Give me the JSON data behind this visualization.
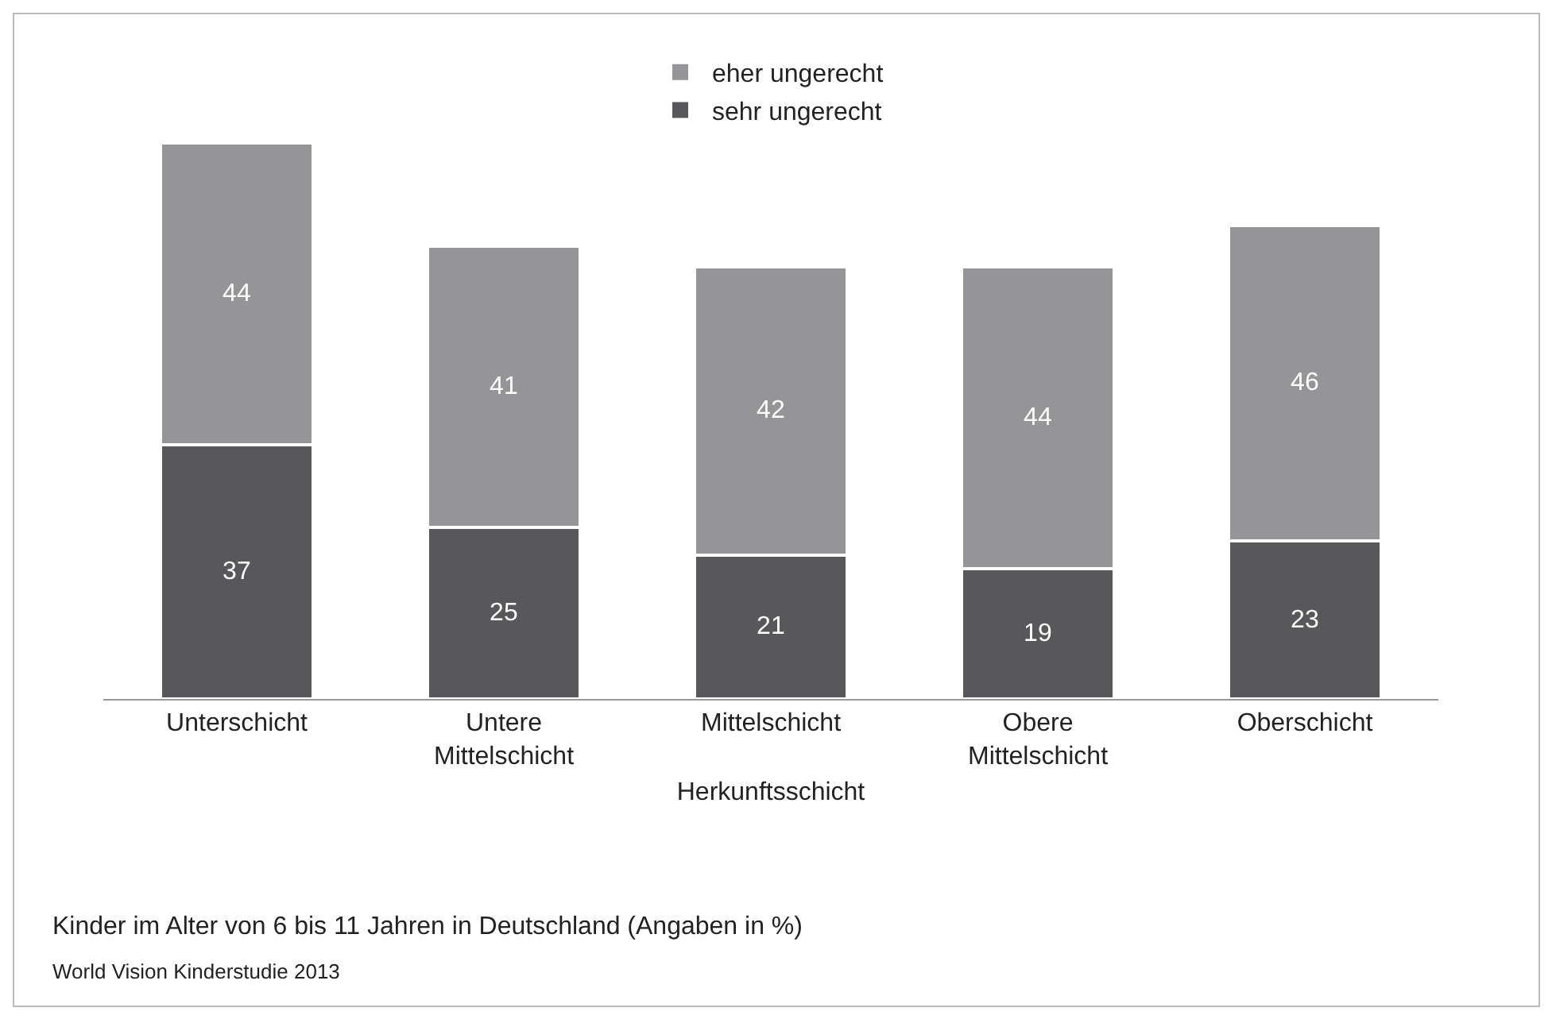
{
  "chart_data": {
    "type": "bar",
    "stacked": true,
    "xlabel": "Herkunftsschicht",
    "categories": [
      "Unterschicht",
      "Untere Mittelschicht",
      "Mittelschicht",
      "Obere Mittelschicht",
      "Oberschicht"
    ],
    "series": [
      {
        "name": "sehr ungerecht",
        "color": "#58585a",
        "values": [
          37,
          25,
          21,
          19,
          23
        ]
      },
      {
        "name": "eher ungerecht",
        "color": "#959597",
        "values": [
          44,
          41,
          42,
          44,
          46
        ]
      }
    ],
    "data_labels": true,
    "legend": "top",
    "grid": false,
    "annotations": [
      "Kinder im Alter von 6 bis 11 Jahren in Deutschland (Angaben in %)",
      "World Vision Kinderstudie 2013"
    ]
  }
}
